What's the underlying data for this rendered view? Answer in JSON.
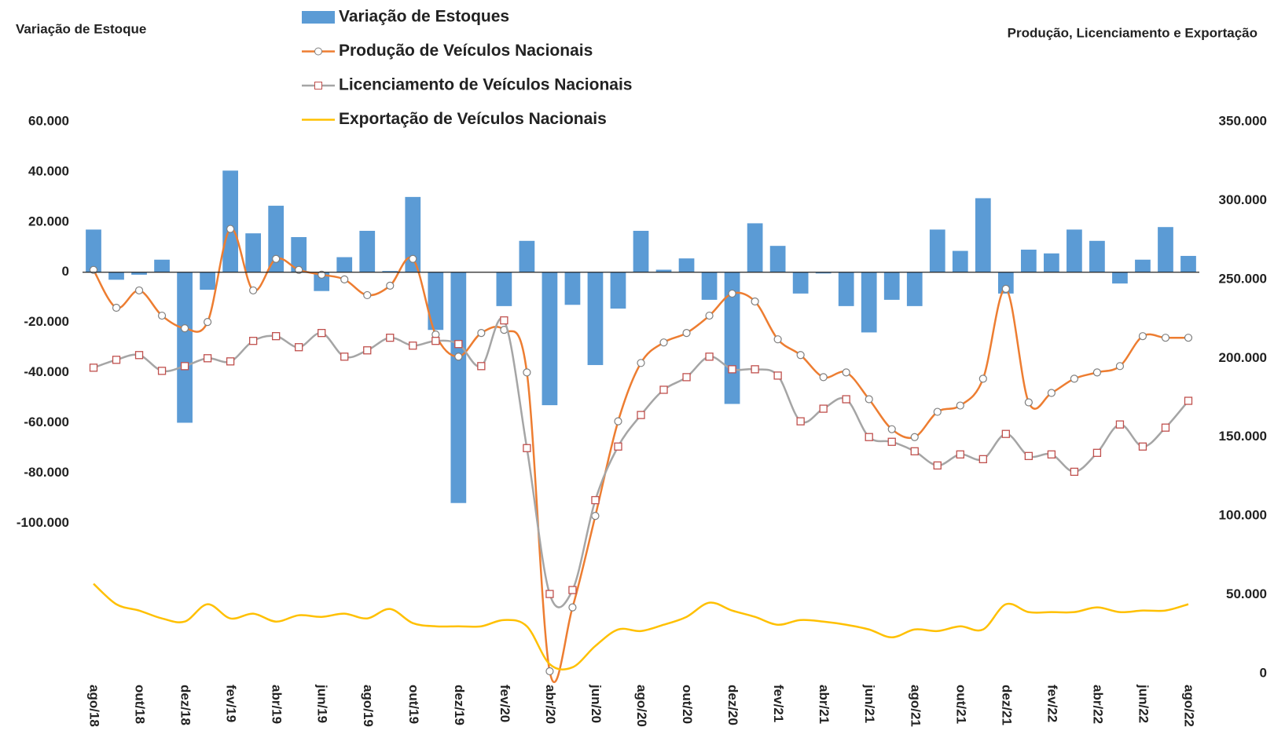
{
  "chart_data": {
    "type": "bar-line",
    "y_label": "Variação de Estoque",
    "y2_label": "Produção, Licenciamento e Exportação",
    "categories": [
      "ago/18",
      null,
      "out/18",
      null,
      "dez/18",
      null,
      "fev/19",
      null,
      "abr/19",
      null,
      "jun/19",
      null,
      "ago/19",
      null,
      "out/19",
      null,
      "dez/19",
      null,
      "fev/20",
      null,
      "abr/20",
      null,
      "jun/20",
      null,
      "ago/20",
      null,
      "out/20",
      null,
      "dez/20",
      null,
      "fev/21",
      null,
      "abr/21",
      null,
      "jun/21",
      null,
      "ago/21",
      null,
      "out/21",
      null,
      "dez/21",
      null,
      "fev/22",
      null,
      "abr/22",
      null,
      "jun/22",
      null,
      "ago/22"
    ],
    "ylim": [
      -160000,
      60000
    ],
    "yticks": [
      {
        "value": 60000,
        "label": "60.000"
      },
      {
        "value": 40000,
        "label": "40.000"
      },
      {
        "value": 20000,
        "label": "20.000"
      },
      0,
      {
        "value": -20000,
        "label": "-20.000"
      },
      {
        "value": -40000,
        "label": "-40.000"
      },
      {
        "value": -60000,
        "label": "-60.000"
      },
      {
        "value": -80000,
        "label": "-80.000"
      },
      {
        "value": -100000,
        "label": "-100.000"
      }
    ],
    "y2lim": [
      0,
      350000
    ],
    "y2ticks": [
      {
        "value": 350000,
        "label": "350.000"
      },
      {
        "value": 300000,
        "label": "300.000"
      },
      {
        "value": 250000,
        "label": "250.000"
      },
      {
        "value": 200000,
        "label": "200.000"
      },
      {
        "value": 150000,
        "label": "150.000"
      },
      {
        "value": 100000,
        "label": "100.000"
      },
      {
        "value": 50000,
        "label": "50.000"
      },
      0
    ],
    "series": [
      {
        "name": "Variação de Estoques",
        "kind": "bar",
        "color": "#5b9bd5",
        "values": [
          17000,
          -3000,
          -1000,
          5000,
          -60000,
          -7000,
          40500,
          15500,
          26500,
          14000,
          -7500,
          6000,
          16500,
          500,
          30000,
          -23000,
          -92000,
          0,
          -13500,
          12500,
          -53000,
          -13000,
          -37000,
          -14500,
          16500,
          1000,
          5500,
          -11000,
          -52500,
          19500,
          10500,
          -8500,
          -500,
          -13500,
          -24000,
          -11000,
          -13500,
          17000,
          8500,
          29500,
          -8500,
          9000,
          7500,
          17000,
          12500,
          -4500,
          5000,
          18000,
          6500
        ]
      },
      {
        "name": "Produção de Veículos Nacionais",
        "kind": "line",
        "marker": "circle",
        "axis": "y2",
        "color": "#ed7d31",
        "values": [
          256000,
          232000,
          243000,
          227000,
          219000,
          223000,
          282000,
          243000,
          263000,
          256000,
          253000,
          250000,
          240000,
          246000,
          263000,
          215000,
          201000,
          216000,
          218000,
          191000,
          1500,
          42000,
          100000,
          160000,
          197000,
          210000,
          216000,
          227000,
          241000,
          236000,
          212000,
          202000,
          188000,
          191000,
          174000,
          155000,
          150000,
          166000,
          170000,
          187000,
          244000,
          172000,
          178000,
          187000,
          191000,
          195000,
          214000,
          213000,
          213000
        ]
      },
      {
        "name": "Licenciamento de Veículos Nacionais",
        "kind": "line",
        "marker": "square",
        "axis": "y2",
        "color": "#a5a5a5",
        "values": [
          194000,
          199000,
          202000,
          192000,
          195000,
          200000,
          198000,
          211000,
          214000,
          207000,
          216000,
          201000,
          205000,
          213000,
          208000,
          211000,
          209000,
          195000,
          224000,
          143000,
          50500,
          53000,
          110000,
          144000,
          164000,
          180000,
          188000,
          201000,
          193000,
          193000,
          189000,
          160000,
          168000,
          174000,
          150000,
          147000,
          141000,
          132000,
          139000,
          136000,
          152000,
          138000,
          139000,
          128000,
          140000,
          158000,
          144000,
          156000,
          173000
        ]
      },
      {
        "name": "Exportação de Veículos Nacionais",
        "kind": "line",
        "axis": "y2",
        "color": "#ffc000",
        "values": [
          57000,
          44000,
          40000,
          35000,
          33000,
          44000,
          35000,
          38000,
          33000,
          37000,
          36000,
          38000,
          35000,
          41000,
          32000,
          30000,
          30000,
          30000,
          34000,
          30000,
          6000,
          4000,
          17500,
          28000,
          27000,
          31000,
          36000,
          45000,
          40000,
          36000,
          31000,
          34000,
          33000,
          31000,
          28000,
          23000,
          28000,
          27000,
          30000,
          28000,
          44000,
          39000,
          39000,
          39000,
          42000,
          39000,
          40000,
          40000,
          44000
        ]
      }
    ]
  }
}
